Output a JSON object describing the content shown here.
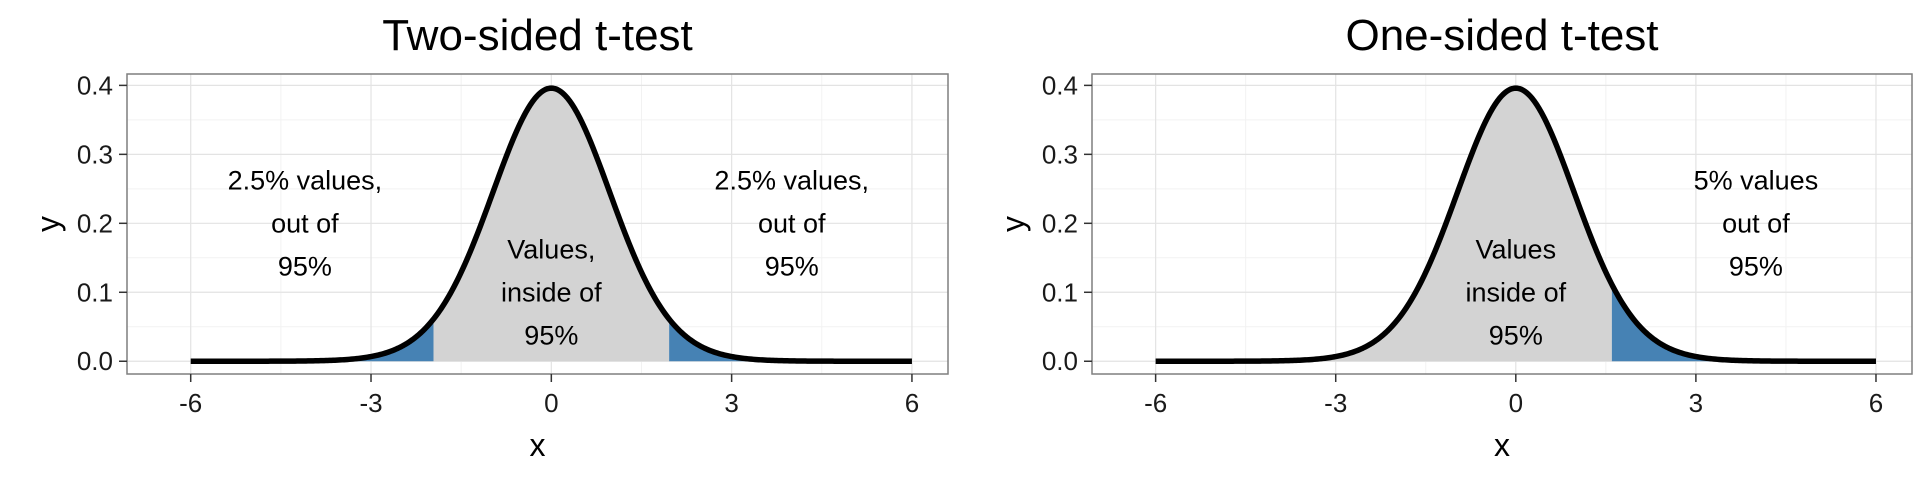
{
  "chart_data": [
    {
      "type": "area",
      "title": "Two-sided t-test",
      "xlabel": "x",
      "ylabel": "y",
      "xlim": [
        -6,
        6
      ],
      "ylim": [
        0,
        0.4
      ],
      "x_ticks": [
        -6,
        -3,
        0,
        3,
        6
      ],
      "x_tick_labels": [
        "-6",
        "-3",
        "0",
        "3",
        "6"
      ],
      "y_ticks": [
        0.0,
        0.1,
        0.2,
        0.3,
        0.4
      ],
      "y_tick_labels": [
        "0.0",
        "0.1",
        "0.2",
        "0.3",
        "0.4"
      ],
      "grid": true,
      "curve": {
        "distribution": "t",
        "df": 30,
        "x_range": [
          -6,
          6
        ],
        "peak": 0.396
      },
      "shaded_regions": [
        {
          "from": -6,
          "to": -1.96,
          "color": "#4682B4"
        },
        {
          "from": -1.96,
          "to": 1.96,
          "color": "#D3D3D3"
        },
        {
          "from": 1.96,
          "to": 6,
          "color": "#4682B4"
        }
      ],
      "annotations": [
        {
          "lines": [
            "2.5% values,",
            "out of",
            "95%"
          ],
          "x": -4.1,
          "y": 0.2
        },
        {
          "lines": [
            "Values,",
            "inside of",
            "95%"
          ],
          "x": 0,
          "y": 0.1
        },
        {
          "lines": [
            "2.5% values,",
            "out of",
            "95%"
          ],
          "x": 4.0,
          "y": 0.2
        }
      ]
    },
    {
      "type": "area",
      "title": "One-sided t-test",
      "xlabel": "x",
      "ylabel": "y",
      "xlim": [
        -6,
        6
      ],
      "ylim": [
        0,
        0.4
      ],
      "x_ticks": [
        -6,
        -3,
        0,
        3,
        6
      ],
      "x_tick_labels": [
        "-6",
        "-3",
        "0",
        "3",
        "6"
      ],
      "y_ticks": [
        0.0,
        0.1,
        0.2,
        0.3,
        0.4
      ],
      "y_tick_labels": [
        "0.0",
        "0.1",
        "0.2",
        "0.3",
        "0.4"
      ],
      "grid": true,
      "curve": {
        "distribution": "t",
        "df": 30,
        "x_range": [
          -6,
          6
        ],
        "peak": 0.396
      },
      "shaded_regions": [
        {
          "from": -6,
          "to": 1.6,
          "color": "#D3D3D3"
        },
        {
          "from": 1.6,
          "to": 6,
          "color": "#4682B4"
        }
      ],
      "annotations": [
        {
          "lines": [
            "Values",
            "inside of",
            "95%"
          ],
          "x": 0,
          "y": 0.1
        },
        {
          "lines": [
            "5% values",
            "out of",
            "95%"
          ],
          "x": 4.0,
          "y": 0.2
        }
      ]
    }
  ]
}
